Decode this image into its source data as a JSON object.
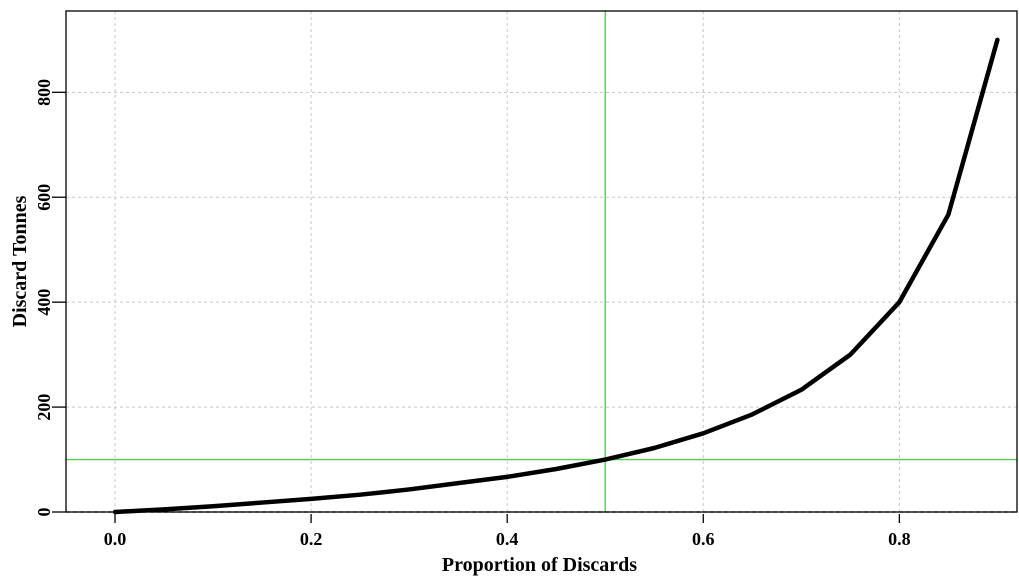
{
  "chart_data": {
    "type": "line",
    "title": "",
    "xlabel": "Proportion of Discards",
    "ylabel": "Discard Tonnes",
    "xlim": [
      -0.05,
      0.92
    ],
    "ylim": [
      0,
      955
    ],
    "x_ticks": [
      0.0,
      0.2,
      0.4,
      0.6,
      0.8
    ],
    "x_tick_labels": [
      "0.0",
      "0.2",
      "0.4",
      "0.6",
      "0.8"
    ],
    "y_ticks": [
      0,
      200,
      400,
      600,
      800
    ],
    "y_tick_labels": [
      "0",
      "200",
      "400",
      "600",
      "800"
    ],
    "grid": true,
    "legend": "none",
    "series": [
      {
        "color": "#000000",
        "x": [
          0.0,
          0.05,
          0.1,
          0.15,
          0.2,
          0.25,
          0.3,
          0.35,
          0.4,
          0.45,
          0.5,
          0.55,
          0.6,
          0.65,
          0.7,
          0.75,
          0.8,
          0.85,
          0.9
        ],
        "y": [
          0,
          5,
          11,
          18,
          25,
          33,
          43,
          55,
          67,
          82,
          100,
          122,
          150,
          186,
          233,
          300,
          400,
          567,
          900
        ]
      }
    ],
    "reference_lines": [
      {
        "orientation": "vertical",
        "value": 0.5,
        "color": "#55cc55"
      },
      {
        "orientation": "horizontal",
        "value": 100,
        "color": "#55cc55"
      }
    ],
    "baseline": {
      "value": 0,
      "style": "dashed",
      "color": "#000000"
    }
  }
}
